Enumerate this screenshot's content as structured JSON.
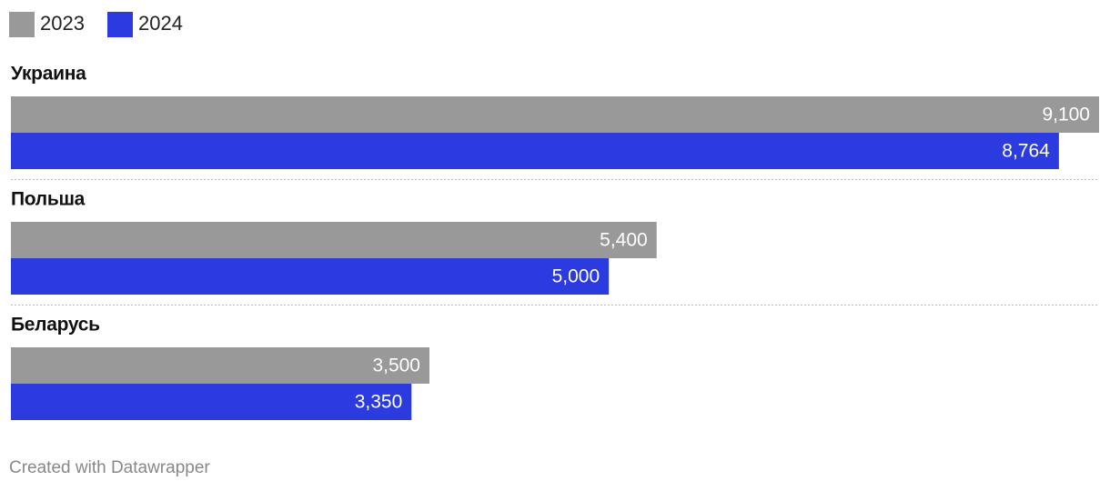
{
  "chart_data": {
    "type": "grouped-hbar",
    "categories": [
      "Украина",
      "Польша",
      "Беларусь"
    ],
    "series": [
      {
        "name": "2023",
        "color": "#999999",
        "values": [
          9100,
          5400,
          3500
        ],
        "value_labels": [
          "9,100",
          "5,400",
          "3,500"
        ]
      },
      {
        "name": "2024",
        "color": "#2b3be0",
        "values": [
          8764,
          5000,
          3350
        ],
        "value_labels": [
          "8,764",
          "5,000",
          "3,350"
        ]
      }
    ],
    "credit": "Created with Datawrapper"
  }
}
